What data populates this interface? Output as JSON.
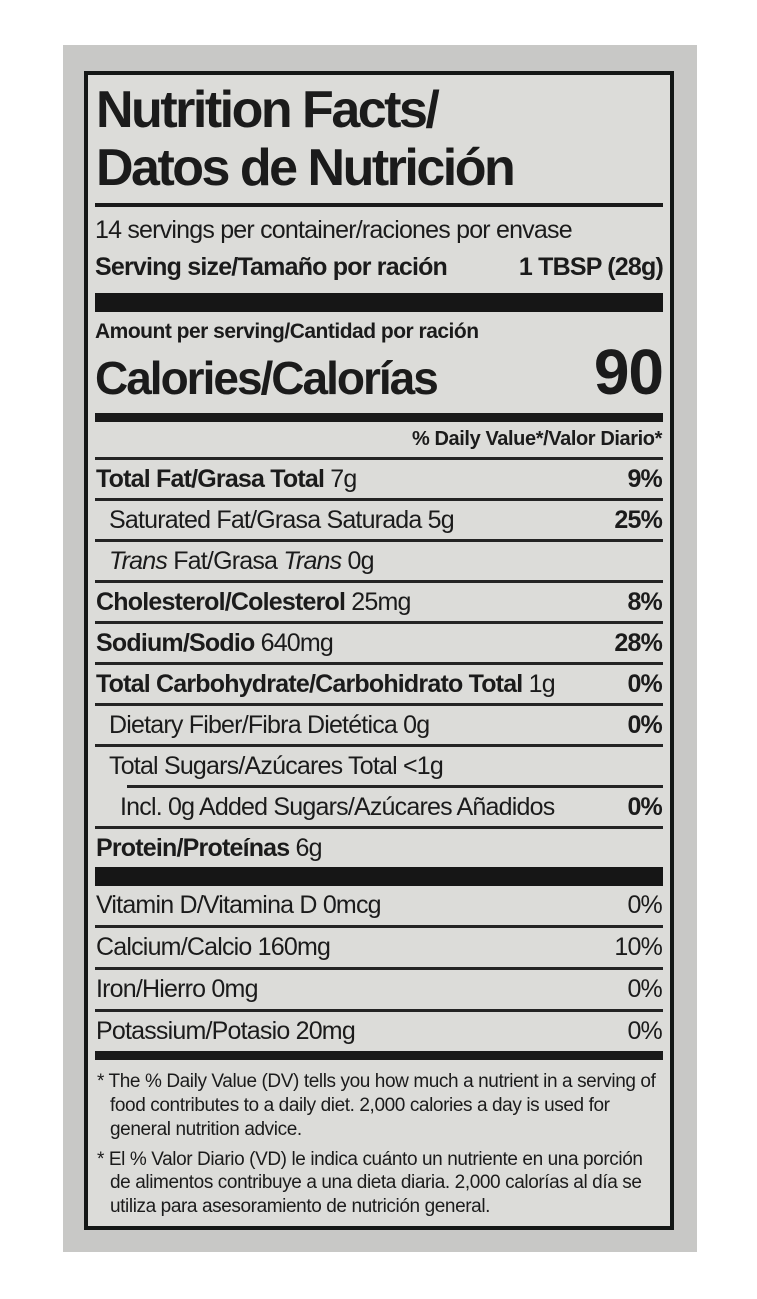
{
  "colors": {
    "ink": "#1b1b1b",
    "label_bg": "#dcdcd9",
    "sheet_bg": "#c8c8c6",
    "page_bg": "#ffffff"
  },
  "label": {
    "title_line1": "Nutrition Facts/",
    "title_line2": "Datos de Nutrición",
    "servings_per_container": "14 servings per container/raciones por envase",
    "serving_size_label": "Serving size/Tamaño por ración",
    "serving_size_value": "1 TBSP (28g)",
    "amount_per_serving": "Amount per serving/Cantidad por ración",
    "calories_label": "Calories/Calorías",
    "calories_value": "90",
    "daily_value_header": "% Daily Value*/Valor Diario*",
    "nutrients": [
      {
        "name": "row-total-fat",
        "indent": 0,
        "sep": "full",
        "dv": "9%",
        "dv_bold": true,
        "segments": [
          {
            "text": "Total Fat/Grasa Total",
            "bold": true
          },
          {
            "text": " 7g"
          }
        ]
      },
      {
        "name": "row-saturated-fat",
        "indent": 1,
        "sep": "full",
        "dv": "25%",
        "dv_bold": true,
        "segments": [
          {
            "text": "Saturated Fat/Grasa Saturada 5g"
          }
        ]
      },
      {
        "name": "row-trans-fat",
        "indent": 1,
        "sep": "full",
        "dv": null,
        "segments": [
          {
            "text": "Trans",
            "italic": true
          },
          {
            "text": " Fat/Grasa "
          },
          {
            "text": "Trans",
            "italic": true
          },
          {
            "text": " 0g"
          }
        ]
      },
      {
        "name": "row-cholesterol",
        "indent": 0,
        "sep": "full",
        "dv": "8%",
        "dv_bold": true,
        "segments": [
          {
            "text": "Cholesterol/Colesterol",
            "bold": true
          },
          {
            "text": " 25mg"
          }
        ]
      },
      {
        "name": "row-sodium",
        "indent": 0,
        "sep": "full",
        "dv": "28%",
        "dv_bold": true,
        "segments": [
          {
            "text": "Sodium/Sodio",
            "bold": true
          },
          {
            "text": " 640mg"
          }
        ]
      },
      {
        "name": "row-total-carbohydrate",
        "indent": 0,
        "sep": "full",
        "dv": "0%",
        "dv_bold": true,
        "segments": [
          {
            "text": "Total Carbohydrate/Carbohidrato Total",
            "bold": true
          },
          {
            "text": " 1g"
          }
        ]
      },
      {
        "name": "row-dietary-fiber",
        "indent": 1,
        "sep": "full",
        "dv": "0%",
        "dv_bold": true,
        "segments": [
          {
            "text": "Dietary Fiber/Fibra Dietética 0g"
          }
        ]
      },
      {
        "name": "row-total-sugars",
        "indent": 1,
        "sep": "full",
        "dv": null,
        "segments": [
          {
            "text": "Total Sugars/Azúcares Total <1g"
          }
        ]
      },
      {
        "name": "row-added-sugars",
        "indent": 2,
        "sep": "indented",
        "dv": "0%",
        "dv_bold": true,
        "segments": [
          {
            "text": "Incl. 0g Added Sugars/Azúcares Añadidos"
          }
        ]
      },
      {
        "name": "row-protein",
        "indent": 0,
        "sep": "full",
        "dv": null,
        "segments": [
          {
            "text": "Protein/Proteínas",
            "bold": true
          },
          {
            "text": " 6g"
          }
        ]
      }
    ],
    "vitamins": [
      {
        "name": "row-vitamin-d",
        "indent": 0,
        "sep": "none",
        "dv": "0%",
        "dv_bold": false,
        "segments": [
          {
            "text": "Vitamin D/Vitamina D 0mcg"
          }
        ]
      },
      {
        "name": "row-calcium",
        "indent": 0,
        "sep": "full",
        "dv": "10%",
        "dv_bold": false,
        "segments": [
          {
            "text": "Calcium/Calcio 160mg"
          }
        ]
      },
      {
        "name": "row-iron",
        "indent": 0,
        "sep": "full",
        "dv": "0%",
        "dv_bold": false,
        "segments": [
          {
            "text": "Iron/Hierro 0mg"
          }
        ]
      },
      {
        "name": "row-potassium",
        "indent": 0,
        "sep": "full",
        "dv": "0%",
        "dv_bold": false,
        "segments": [
          {
            "text": "Potassium/Potasio 20mg"
          }
        ]
      }
    ],
    "footnotes": [
      {
        "marker": "*",
        "text": "The % Daily Value (DV) tells you how much a nutrient in a serving of food contributes to a daily diet. 2,000 calories a day is used for general nutrition advice."
      },
      {
        "marker": "*",
        "text": "El % Valor Diario (VD) le indica cuánto un nutriente en una porción de alimentos contribuye a una dieta diaria. 2,000 calorías al día se utiliza para asesoramiento de nutrición general."
      }
    ]
  }
}
